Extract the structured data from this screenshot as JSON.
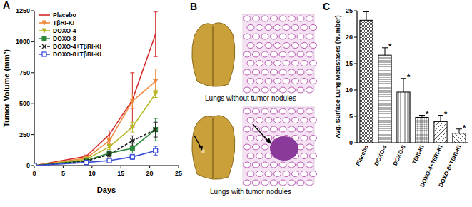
{
  "chart_data": [
    {
      "type": "line",
      "panel_label": "A",
      "x_label": "Days",
      "y_label": "Tumor Volume (mm³)",
      "x": [
        0,
        9,
        13,
        17,
        21
      ],
      "xlim": [
        0,
        25
      ],
      "xticks": [
        0,
        5,
        10,
        15,
        20,
        25
      ],
      "ylim": [
        0,
        1250
      ],
      "yticks": [
        0,
        250,
        500,
        750,
        1000,
        1250
      ],
      "legend": "upper left",
      "series": [
        {
          "name": "Placebo",
          "color": "#d42a2a",
          "marker": "none",
          "line_style": "solid",
          "values": [
            0,
            75,
            250,
            530,
            1060
          ],
          "errors": [
            0,
            10,
            30,
            220,
            180
          ]
        },
        {
          "name": "TβRI-KI",
          "color": "#f08a3c",
          "marker": "triangle-down",
          "line_style": "solid",
          "values": [
            0,
            60,
            200,
            520,
            680
          ],
          "errors": [
            0,
            10,
            25,
            60,
            100
          ]
        },
        {
          "name": "DOXO-4",
          "color": "#b8b828",
          "marker": "triangle-down",
          "line_style": "solid",
          "values": [
            0,
            50,
            150,
            310,
            580
          ],
          "errors": [
            0,
            8,
            20,
            40,
            30
          ]
        },
        {
          "name": "DOXO-8",
          "color": "#2a8a3a",
          "marker": "square",
          "line_style": "solid",
          "values": [
            0,
            40,
            100,
            140,
            290
          ],
          "errors": [
            0,
            8,
            20,
            40,
            90
          ]
        },
        {
          "name": "DOXO-4+TβRI-KI",
          "color": "#222222",
          "marker": "x",
          "line_style": "dashed",
          "values": [
            0,
            35,
            90,
            200,
            290
          ],
          "errors": [
            0,
            6,
            20,
            40,
            60
          ]
        },
        {
          "name": "DOXO-8+TβRI-KI",
          "color": "#3a4fd8",
          "marker": "square-open",
          "line_style": "solid",
          "values": [
            0,
            25,
            40,
            70,
            120
          ],
          "errors": [
            0,
            5,
            10,
            20,
            35
          ]
        }
      ]
    },
    {
      "type": "bar",
      "panel_label": "C",
      "y_label": "Avg. Surface Lung Metastases (Number)",
      "categories": [
        "Placebo",
        "DOXO-4",
        "DOXO-8",
        "TβRI-KI",
        "DOXO-4+TβRI-KI",
        "DOXO-8+TβRI-KI"
      ],
      "values": [
        23.2,
        16.6,
        9.6,
        4.8,
        4.0,
        1.8
      ],
      "errors": [
        1.6,
        1.4,
        2.6,
        0.4,
        1.2,
        0.8
      ],
      "significance": [
        null,
        "*",
        "*",
        "*",
        "*",
        "*"
      ],
      "color": "#ffffff",
      "ylim": [
        0,
        25
      ],
      "yticks": [
        0,
        5,
        10,
        15,
        20,
        25
      ]
    }
  ],
  "images": {
    "panel_label": "B",
    "captions": [
      "Lungs without tumor nodules",
      "Lungs with tumor nodules"
    ]
  }
}
